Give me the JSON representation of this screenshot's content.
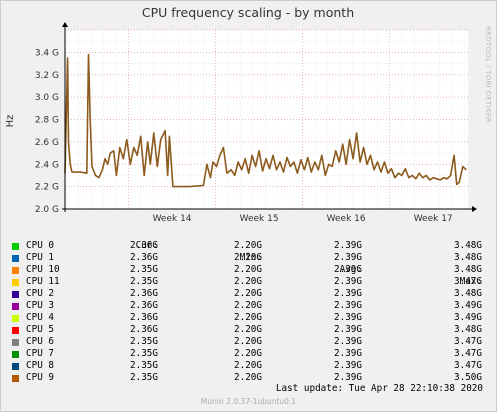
{
  "chart_data": {
    "type": "line",
    "title": "CPU frequency scaling - by month",
    "ylabel": "Hz",
    "ylim": [
      2.0,
      3.6
    ],
    "ytick_labels": [
      "2.0 G",
      "2.2 G",
      "2.4 G",
      "2.6 G",
      "2.8 G",
      "3.0 G",
      "3.2 G",
      "3.4 G"
    ],
    "xtick_labels": [
      "Week 14",
      "Week 15",
      "Week 16",
      "Week 17"
    ],
    "x_range_weeks": [
      13.27,
      17.9
    ],
    "grid": true,
    "line_color": "#8b5a1c",
    "series_points": [
      [
        13.27,
        2.32
      ],
      [
        13.3,
        3.35
      ],
      [
        13.31,
        2.6
      ],
      [
        13.33,
        2.4
      ],
      [
        13.35,
        2.33
      ],
      [
        13.45,
        2.33
      ],
      [
        13.52,
        2.32
      ],
      [
        13.54,
        3.38
      ],
      [
        13.56,
        2.8
      ],
      [
        13.58,
        2.38
      ],
      [
        13.62,
        2.3
      ],
      [
        13.66,
        2.28
      ],
      [
        13.7,
        2.35
      ],
      [
        13.73,
        2.45
      ],
      [
        13.76,
        2.4
      ],
      [
        13.79,
        2.5
      ],
      [
        13.83,
        2.52
      ],
      [
        13.86,
        2.3
      ],
      [
        13.9,
        2.55
      ],
      [
        13.94,
        2.45
      ],
      [
        13.98,
        2.62
      ],
      [
        14.02,
        2.4
      ],
      [
        14.06,
        2.55
      ],
      [
        14.1,
        2.48
      ],
      [
        14.14,
        2.65
      ],
      [
        14.18,
        2.3
      ],
      [
        14.22,
        2.6
      ],
      [
        14.25,
        2.4
      ],
      [
        14.29,
        2.68
      ],
      [
        14.33,
        2.38
      ],
      [
        14.37,
        2.62
      ],
      [
        14.42,
        2.7
      ],
      [
        14.45,
        2.3
      ],
      [
        14.47,
        2.65
      ],
      [
        14.51,
        2.2
      ],
      [
        14.6,
        2.2
      ],
      [
        14.7,
        2.2
      ],
      [
        14.86,
        2.21
      ],
      [
        14.9,
        2.4
      ],
      [
        14.94,
        2.28
      ],
      [
        14.97,
        2.42
      ],
      [
        15.01,
        2.38
      ],
      [
        15.05,
        2.48
      ],
      [
        15.09,
        2.55
      ],
      [
        15.13,
        2.32
      ],
      [
        15.18,
        2.35
      ],
      [
        15.22,
        2.3
      ],
      [
        15.26,
        2.42
      ],
      [
        15.3,
        2.35
      ],
      [
        15.34,
        2.45
      ],
      [
        15.38,
        2.32
      ],
      [
        15.42,
        2.48
      ],
      [
        15.46,
        2.38
      ],
      [
        15.5,
        2.52
      ],
      [
        15.54,
        2.34
      ],
      [
        15.58,
        2.45
      ],
      [
        15.62,
        2.36
      ],
      [
        15.66,
        2.48
      ],
      [
        15.7,
        2.35
      ],
      [
        15.74,
        2.42
      ],
      [
        15.78,
        2.33
      ],
      [
        15.82,
        2.46
      ],
      [
        15.86,
        2.38
      ],
      [
        15.9,
        2.42
      ],
      [
        15.94,
        2.32
      ],
      [
        15.98,
        2.44
      ],
      [
        16.02,
        2.35
      ],
      [
        16.06,
        2.46
      ],
      [
        16.1,
        2.33
      ],
      [
        16.14,
        2.42
      ],
      [
        16.18,
        2.35
      ],
      [
        16.22,
        2.48
      ],
      [
        16.26,
        2.3
      ],
      [
        16.3,
        2.4
      ],
      [
        16.34,
        2.38
      ],
      [
        16.38,
        2.52
      ],
      [
        16.42,
        2.42
      ],
      [
        16.46,
        2.58
      ],
      [
        16.5,
        2.4
      ],
      [
        16.54,
        2.62
      ],
      [
        16.58,
        2.45
      ],
      [
        16.62,
        2.68
      ],
      [
        16.66,
        2.42
      ],
      [
        16.7,
        2.55
      ],
      [
        16.74,
        2.4
      ],
      [
        16.78,
        2.48
      ],
      [
        16.82,
        2.35
      ],
      [
        16.86,
        2.42
      ],
      [
        16.9,
        2.33
      ],
      [
        16.94,
        2.42
      ],
      [
        16.98,
        2.32
      ],
      [
        17.02,
        2.36
      ],
      [
        17.06,
        2.28
      ],
      [
        17.1,
        2.32
      ],
      [
        17.14,
        2.3
      ],
      [
        17.18,
        2.36
      ],
      [
        17.22,
        2.28
      ],
      [
        17.26,
        2.3
      ],
      [
        17.3,
        2.27
      ],
      [
        17.34,
        2.32
      ],
      [
        17.38,
        2.28
      ],
      [
        17.42,
        2.3
      ],
      [
        17.46,
        2.26
      ],
      [
        17.5,
        2.28
      ],
      [
        17.54,
        2.27
      ],
      [
        17.58,
        2.26
      ],
      [
        17.62,
        2.28
      ],
      [
        17.66,
        2.27
      ],
      [
        17.7,
        2.3
      ],
      [
        17.74,
        2.48
      ],
      [
        17.77,
        2.22
      ],
      [
        17.8,
        2.24
      ],
      [
        17.84,
        2.38
      ],
      [
        17.88,
        2.35
      ]
    ]
  },
  "sidebar_label": "RRDTOOL / TOBI OETIKER",
  "legend": {
    "headers": {
      "cur": "Cur:",
      "min": "Min:",
      "avg": "Avg:",
      "max": "Max:"
    },
    "rows": [
      {
        "name": "CPU 0",
        "color": "#00cc00",
        "cur": "2.36G",
        "min": "2.20G",
        "avg": "2.39G",
        "max": "3.48G"
      },
      {
        "name": "CPU 1",
        "color": "#0066b3",
        "cur": "2.36G",
        "min": "2.20G",
        "avg": "2.39G",
        "max": "3.48G"
      },
      {
        "name": "CPU 10",
        "color": "#ff8000",
        "cur": "2.35G",
        "min": "2.20G",
        "avg": "2.39G",
        "max": "3.48G"
      },
      {
        "name": "CPU 11",
        "color": "#ffcc00",
        "cur": "2.35G",
        "min": "2.20G",
        "avg": "2.39G",
        "max": "3.47G"
      },
      {
        "name": "CPU 2",
        "color": "#330099",
        "cur": "2.36G",
        "min": "2.20G",
        "avg": "2.39G",
        "max": "3.48G"
      },
      {
        "name": "CPU 3",
        "color": "#990099",
        "cur": "2.36G",
        "min": "2.20G",
        "avg": "2.39G",
        "max": "3.49G"
      },
      {
        "name": "CPU 4",
        "color": "#ccff00",
        "cur": "2.36G",
        "min": "2.20G",
        "avg": "2.39G",
        "max": "3.49G"
      },
      {
        "name": "CPU 5",
        "color": "#ff0000",
        "cur": "2.36G",
        "min": "2.20G",
        "avg": "2.39G",
        "max": "3.48G"
      },
      {
        "name": "CPU 6",
        "color": "#808080",
        "cur": "2.35G",
        "min": "2.20G",
        "avg": "2.39G",
        "max": "3.47G"
      },
      {
        "name": "CPU 7",
        "color": "#008f00",
        "cur": "2.35G",
        "min": "2.20G",
        "avg": "2.39G",
        "max": "3.47G"
      },
      {
        "name": "CPU 8",
        "color": "#00487d",
        "cur": "2.35G",
        "min": "2.20G",
        "avg": "2.39G",
        "max": "3.47G"
      },
      {
        "name": "CPU 9",
        "color": "#b35a00",
        "cur": "2.35G",
        "min": "2.20G",
        "avg": "2.39G",
        "max": "3.50G"
      }
    ]
  },
  "footer": {
    "last_update": "Last update: Tue Apr 28 22:10:38 2020",
    "version": "Munin 2.0.37-1ubuntu0.1"
  }
}
